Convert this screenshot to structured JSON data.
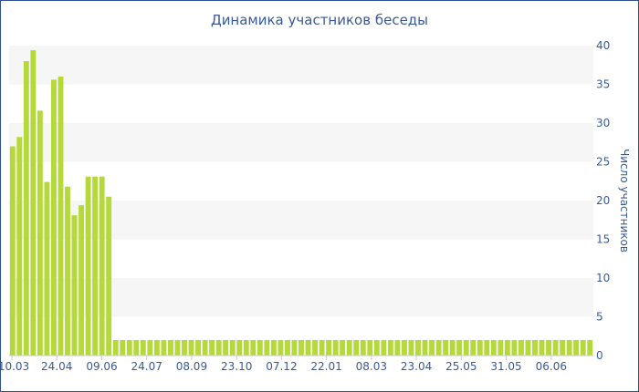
{
  "chart_data": {
    "type": "bar",
    "title": "Динамика участников беседы",
    "ylabel": "Число участников",
    "xlabel": "",
    "ylim": [
      0,
      40
    ],
    "yticks": [
      0,
      5,
      10,
      15,
      20,
      25,
      30,
      35,
      40
    ],
    "x_tick_labels": [
      "10.03",
      "24.04",
      "09.06",
      "24.07",
      "08.09",
      "23.10",
      "07.12",
      "22.01",
      "08.03",
      "23.04",
      "25.05",
      "31.05",
      "06.06"
    ],
    "values": [
      27,
      28.2,
      38,
      39.4,
      31.6,
      22.4,
      35.6,
      36,
      21.8,
      18.1,
      19.4,
      23.1,
      23.1,
      23.1,
      20.5,
      2,
      2,
      2,
      2,
      2,
      2,
      2,
      2,
      2,
      2,
      2,
      2,
      2,
      2,
      2,
      2,
      2,
      2,
      2,
      2,
      2,
      2,
      2,
      2,
      2,
      2,
      2,
      2,
      2,
      2,
      2,
      2,
      2,
      2,
      2,
      2,
      2,
      2,
      2,
      2,
      2,
      2,
      2,
      2,
      2,
      2,
      2,
      2,
      2,
      2,
      2,
      2,
      2,
      2,
      2,
      2,
      2,
      2,
      2,
      2,
      2,
      2,
      2,
      2,
      2,
      2,
      2,
      2,
      2,
      2
    ],
    "bar_color": "#b5d93a",
    "band_color": "#f6f6f6",
    "axis_text_color": "#3b5a95",
    "grid": true
  }
}
